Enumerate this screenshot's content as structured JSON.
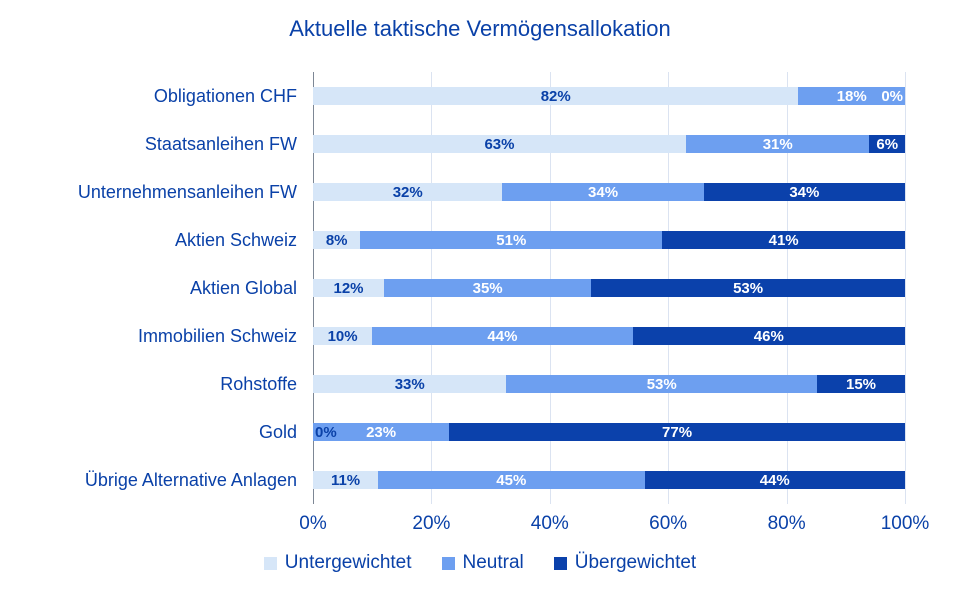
{
  "chart_data": {
    "type": "bar",
    "orientation": "horizontal",
    "stacked": true,
    "title": "Aktuelle taktische Vermögensallokation",
    "categories": [
      "Obligationen CHF",
      "Staatsanleihen FW",
      "Unternehmensanleihen FW",
      "Aktien Schweiz",
      "Aktien Global",
      "Immobilien Schweiz",
      "Rohstoffe",
      "Gold",
      "Übrige Alternative Anlagen"
    ],
    "series": [
      {
        "name": "Untergewichtet",
        "color": "#d6e6f8",
        "label_color": "#0a41a8",
        "values": [
          82,
          63,
          32,
          8,
          12,
          10,
          33,
          0,
          11
        ]
      },
      {
        "name": "Neutral",
        "color": "#6d9ff0",
        "label_color": "#ffffff",
        "values": [
          18,
          31,
          34,
          51,
          35,
          44,
          53,
          23,
          45
        ]
      },
      {
        "name": "Übergewichtet",
        "color": "#0b41ab",
        "label_color": "#ffffff",
        "values": [
          0,
          6,
          34,
          41,
          53,
          46,
          15,
          77,
          44
        ]
      }
    ],
    "value_suffix": "%",
    "x_ticks": [
      "0%",
      "20%",
      "40%",
      "60%",
      "80%",
      "100%"
    ],
    "xlim": [
      0,
      100
    ],
    "grid": true,
    "legend_position": "bottom"
  },
  "colors": {
    "text_blue": "#0a41a8",
    "gridline": "#dbe3f1",
    "axis_line": "#7d8795",
    "background": "#ffffff"
  }
}
